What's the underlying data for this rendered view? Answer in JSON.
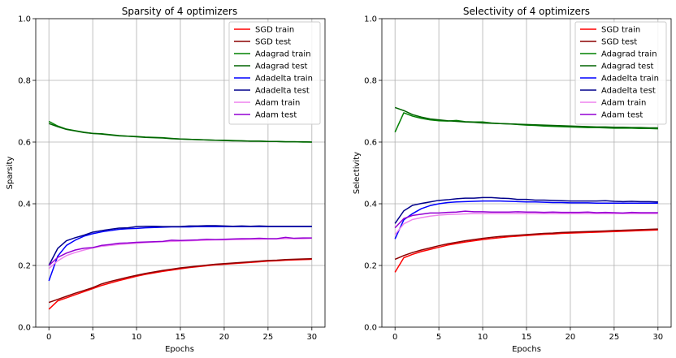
{
  "chart_data": [
    {
      "type": "line",
      "title": "Sparsity of 4 optimizers",
      "xlabel": "Epochs",
      "ylabel": "Sparsity",
      "xlim": [
        -1.5,
        31.5
      ],
      "ylim": [
        0,
        1.0
      ],
      "xticks": [
        0,
        5,
        10,
        15,
        20,
        25,
        30
      ],
      "yticks": [
        0.0,
        0.2,
        0.4,
        0.6,
        0.8,
        1.0
      ],
      "grid": true,
      "legend_position": "top-right",
      "x": [
        0,
        1,
        2,
        3,
        4,
        5,
        6,
        7,
        8,
        9,
        10,
        11,
        12,
        13,
        14,
        15,
        16,
        17,
        18,
        19,
        20,
        21,
        22,
        23,
        24,
        25,
        26,
        27,
        28,
        29,
        30
      ],
      "series": [
        {
          "name": "SGD train",
          "color": "#ff0000",
          "values": [
            0.058,
            0.085,
            0.095,
            0.105,
            0.115,
            0.125,
            0.135,
            0.143,
            0.151,
            0.158,
            0.165,
            0.171,
            0.176,
            0.181,
            0.185,
            0.189,
            0.193,
            0.196,
            0.199,
            0.202,
            0.204,
            0.206,
            0.208,
            0.21,
            0.212,
            0.214,
            0.215,
            0.217,
            0.218,
            0.219,
            0.22
          ]
        },
        {
          "name": "SGD test",
          "color": "#8b0000",
          "values": [
            0.08,
            0.09,
            0.1,
            0.11,
            0.119,
            0.128,
            0.14,
            0.148,
            0.155,
            0.162,
            0.168,
            0.174,
            0.179,
            0.184,
            0.188,
            0.192,
            0.195,
            0.198,
            0.201,
            0.204,
            0.206,
            0.208,
            0.21,
            0.212,
            0.214,
            0.216,
            0.217,
            0.219,
            0.22,
            0.221,
            0.222
          ]
        },
        {
          "name": "Adagrad train",
          "color": "#008000",
          "values": [
            0.667,
            0.652,
            0.642,
            0.637,
            0.632,
            0.628,
            0.627,
            0.624,
            0.621,
            0.619,
            0.618,
            0.616,
            0.615,
            0.614,
            0.612,
            0.61,
            0.609,
            0.608,
            0.607,
            0.606,
            0.606,
            0.605,
            0.604,
            0.603,
            0.603,
            0.602,
            0.602,
            0.601,
            0.601,
            0.6,
            0.6
          ]
        },
        {
          "name": "Adagrad test",
          "color": "#006400",
          "values": [
            0.66,
            0.65,
            0.641,
            0.636,
            0.631,
            0.628,
            0.626,
            0.623,
            0.62,
            0.619,
            0.617,
            0.615,
            0.614,
            0.613,
            0.611,
            0.61,
            0.609,
            0.608,
            0.607,
            0.606,
            0.605,
            0.604,
            0.604,
            0.603,
            0.603,
            0.602,
            0.602,
            0.601,
            0.601,
            0.601,
            0.6
          ]
        },
        {
          "name": "Adadelta train",
          "color": "#0000ff",
          "values": [
            0.15,
            0.23,
            0.265,
            0.282,
            0.295,
            0.303,
            0.309,
            0.313,
            0.317,
            0.319,
            0.32,
            0.322,
            0.323,
            0.324,
            0.325,
            0.325,
            0.325,
            0.326,
            0.326,
            0.326,
            0.326,
            0.326,
            0.326,
            0.326,
            0.326,
            0.326,
            0.326,
            0.326,
            0.326,
            0.326,
            0.326
          ]
        },
        {
          "name": "Adadelta test",
          "color": "#00008b",
          "values": [
            0.2,
            0.255,
            0.28,
            0.29,
            0.298,
            0.308,
            0.313,
            0.317,
            0.321,
            0.322,
            0.326,
            0.327,
            0.327,
            0.326,
            0.326,
            0.326,
            0.328,
            0.328,
            0.329,
            0.329,
            0.328,
            0.327,
            0.328,
            0.327,
            0.328,
            0.327,
            0.327,
            0.327,
            0.327,
            0.327,
            0.327
          ]
        },
        {
          "name": "Adam train",
          "color": "#ee82ee",
          "values": [
            0.19,
            0.215,
            0.232,
            0.242,
            0.25,
            0.257,
            0.262,
            0.265,
            0.268,
            0.27,
            0.272,
            0.274,
            0.276,
            0.277,
            0.278,
            0.279,
            0.28,
            0.281,
            0.282,
            0.283,
            0.283,
            0.284,
            0.284,
            0.285,
            0.285,
            0.286,
            0.286,
            0.287,
            0.287,
            0.287,
            0.288
          ]
        },
        {
          "name": "Adam test",
          "color": "#9400d3",
          "values": [
            0.2,
            0.226,
            0.24,
            0.25,
            0.256,
            0.258,
            0.265,
            0.268,
            0.272,
            0.273,
            0.275,
            0.276,
            0.277,
            0.278,
            0.282,
            0.281,
            0.282,
            0.283,
            0.285,
            0.284,
            0.285,
            0.286,
            0.287,
            0.287,
            0.288,
            0.287,
            0.287,
            0.291,
            0.288,
            0.289,
            0.289
          ]
        }
      ]
    },
    {
      "type": "line",
      "title": "Selectivity of 4 optimizers",
      "xlabel": "Epochs",
      "ylabel": "Selectivity",
      "xlim": [
        -1.5,
        31.5
      ],
      "ylim": [
        0,
        1.0
      ],
      "xticks": [
        0,
        5,
        10,
        15,
        20,
        25,
        30
      ],
      "yticks": [
        0.0,
        0.2,
        0.4,
        0.6,
        0.8,
        1.0
      ],
      "grid": true,
      "legend_position": "top-right",
      "x": [
        0,
        1,
        2,
        3,
        4,
        5,
        6,
        7,
        8,
        9,
        10,
        11,
        12,
        13,
        14,
        15,
        16,
        17,
        18,
        19,
        20,
        21,
        22,
        23,
        24,
        25,
        26,
        27,
        28,
        29,
        30
      ],
      "series": [
        {
          "name": "SGD train",
          "color": "#ff0000",
          "values": [
            0.178,
            0.225,
            0.236,
            0.245,
            0.252,
            0.259,
            0.266,
            0.271,
            0.276,
            0.28,
            0.284,
            0.287,
            0.29,
            0.293,
            0.295,
            0.297,
            0.299,
            0.301,
            0.302,
            0.304,
            0.305,
            0.306,
            0.307,
            0.308,
            0.309,
            0.31,
            0.311,
            0.312,
            0.313,
            0.314,
            0.315
          ]
        },
        {
          "name": "SGD test",
          "color": "#8b0000",
          "values": [
            0.22,
            0.232,
            0.242,
            0.25,
            0.257,
            0.264,
            0.27,
            0.275,
            0.28,
            0.284,
            0.288,
            0.291,
            0.294,
            0.296,
            0.298,
            0.3,
            0.302,
            0.304,
            0.305,
            0.307,
            0.308,
            0.309,
            0.31,
            0.311,
            0.312,
            0.313,
            0.314,
            0.315,
            0.316,
            0.317,
            0.318
          ]
        },
        {
          "name": "Adagrad train",
          "color": "#008000",
          "values": [
            0.632,
            0.695,
            0.684,
            0.677,
            0.672,
            0.669,
            0.668,
            0.67,
            0.666,
            0.665,
            0.665,
            0.662,
            0.66,
            0.659,
            0.657,
            0.655,
            0.654,
            0.652,
            0.651,
            0.65,
            0.649,
            0.648,
            0.647,
            0.647,
            0.646,
            0.645,
            0.645,
            0.645,
            0.644,
            0.644,
            0.643
          ]
        },
        {
          "name": "Adagrad test",
          "color": "#006400",
          "values": [
            0.712,
            0.702,
            0.689,
            0.681,
            0.675,
            0.672,
            0.669,
            0.667,
            0.665,
            0.664,
            0.662,
            0.661,
            0.66,
            0.659,
            0.658,
            0.657,
            0.656,
            0.655,
            0.654,
            0.653,
            0.652,
            0.651,
            0.65,
            0.649,
            0.649,
            0.648,
            0.648,
            0.647,
            0.647,
            0.646,
            0.646
          ]
        },
        {
          "name": "Adadelta train",
          "color": "#0000ff",
          "values": [
            0.286,
            0.348,
            0.368,
            0.384,
            0.394,
            0.4,
            0.404,
            0.406,
            0.407,
            0.408,
            0.409,
            0.409,
            0.409,
            0.408,
            0.407,
            0.406,
            0.406,
            0.405,
            0.404,
            0.404,
            0.403,
            0.403,
            0.403,
            0.402,
            0.402,
            0.402,
            0.402,
            0.402,
            0.402,
            0.402,
            0.402
          ]
        },
        {
          "name": "Adadelta test",
          "color": "#00008b",
          "values": [
            0.336,
            0.377,
            0.395,
            0.401,
            0.406,
            0.411,
            0.413,
            0.416,
            0.418,
            0.418,
            0.42,
            0.42,
            0.418,
            0.417,
            0.414,
            0.414,
            0.412,
            0.412,
            0.411,
            0.41,
            0.409,
            0.409,
            0.409,
            0.409,
            0.41,
            0.408,
            0.407,
            0.408,
            0.407,
            0.407,
            0.406
          ]
        },
        {
          "name": "Adam train",
          "color": "#ee82ee",
          "values": [
            0.3,
            0.335,
            0.349,
            0.355,
            0.36,
            0.363,
            0.365,
            0.366,
            0.367,
            0.368,
            0.368,
            0.368,
            0.368,
            0.368,
            0.368,
            0.368,
            0.368,
            0.368,
            0.368,
            0.368,
            0.368,
            0.368,
            0.368,
            0.368,
            0.368,
            0.368,
            0.368,
            0.368,
            0.368,
            0.368,
            0.368
          ]
        },
        {
          "name": "Adam test",
          "color": "#9400d3",
          "values": [
            0.322,
            0.352,
            0.362,
            0.366,
            0.37,
            0.37,
            0.372,
            0.373,
            0.376,
            0.374,
            0.374,
            0.373,
            0.373,
            0.373,
            0.374,
            0.373,
            0.373,
            0.372,
            0.373,
            0.372,
            0.372,
            0.372,
            0.373,
            0.371,
            0.372,
            0.371,
            0.37,
            0.372,
            0.371,
            0.371,
            0.371
          ]
        }
      ]
    }
  ]
}
